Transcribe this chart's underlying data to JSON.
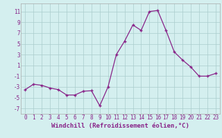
{
  "x": [
    0,
    1,
    2,
    3,
    4,
    5,
    6,
    7,
    8,
    9,
    10,
    11,
    12,
    13,
    14,
    15,
    16,
    17,
    18,
    19,
    20,
    21,
    22,
    23
  ],
  "y": [
    -3.5,
    -2.5,
    -2.7,
    -3.2,
    -3.5,
    -4.5,
    -4.5,
    -3.8,
    -3.7,
    -6.5,
    -3.0,
    3.0,
    5.5,
    8.5,
    7.5,
    11.0,
    11.2,
    7.5,
    3.5,
    2.0,
    0.7,
    -1.0,
    -1.0,
    -0.5
  ],
  "line_color": "#882288",
  "marker_color": "#882288",
  "bg_color": "#d4efef",
  "grid_color": "#aacccc",
  "xlabel": "Windchill (Refroidissement éolien,°C)",
  "ylabel_ticks": [
    -7,
    -5,
    -3,
    -1,
    1,
    3,
    5,
    7,
    9,
    11
  ],
  "xlim": [
    -0.5,
    23.5
  ],
  "ylim": [
    -8.0,
    12.5
  ],
  "xticks": [
    0,
    1,
    2,
    3,
    4,
    5,
    6,
    7,
    8,
    9,
    10,
    11,
    12,
    13,
    14,
    15,
    16,
    17,
    18,
    19,
    20,
    21,
    22,
    23
  ],
  "tick_font_size": 5.5,
  "label_font_size": 6.5
}
